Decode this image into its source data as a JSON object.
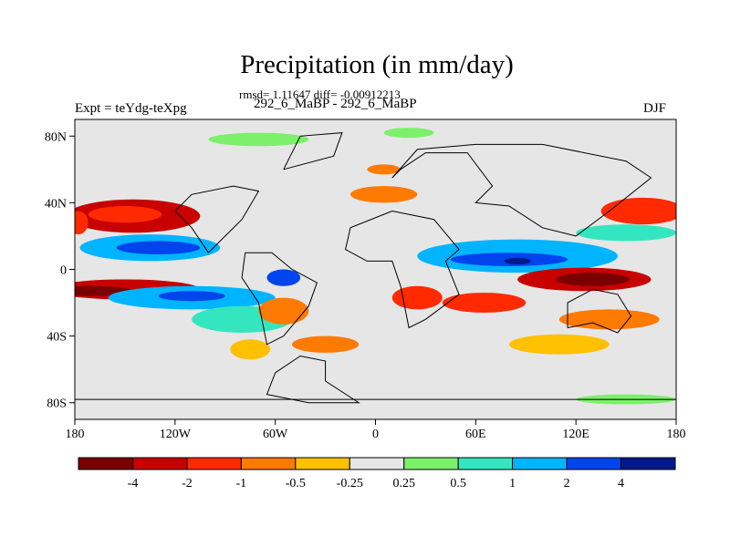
{
  "chart_data": {
    "type": "heatmap",
    "title": "Precipitation (in mm/day)",
    "stats_text": "rmsd= 1.11647 diff= -0.00912213",
    "subtitle": "292_6_MaBP - 292_6_MaBP",
    "left_label": "Expt = teYdg-teXpg",
    "right_label": "DJF",
    "x_ticks": [
      "180",
      "120W",
      "60W",
      "0",
      "60E",
      "120E",
      "180"
    ],
    "y_ticks": [
      "80N",
      "40N",
      "0",
      "40S",
      "80S"
    ],
    "xlim": [
      -180,
      180
    ],
    "ylim": [
      -90,
      90
    ],
    "colorbar": {
      "labels": [
        "-4",
        "-2",
        "-1",
        "-0.5",
        "-0.25",
        "0.25",
        "0.5",
        "1",
        "2",
        "4"
      ],
      "colors": [
        "#7a0000",
        "#c80000",
        "#ff2a00",
        "#ff7a00",
        "#ffc000",
        "#e6e6e6",
        "#7cf06a",
        "#33e6c0",
        "#00b4ff",
        "#0044ee",
        "#001a8a"
      ]
    },
    "background_color": "#e6e6e6",
    "anomaly_regions": [
      {
        "name": "north-pacific-dry",
        "lon": -145,
        "lat": 32,
        "rx": 40,
        "ry": 10,
        "level": 1
      },
      {
        "name": "north-pacific-dry-core",
        "lon": -150,
        "lat": 33,
        "rx": 22,
        "ry": 5,
        "level": 2
      },
      {
        "name": "north-pacific-dry-west",
        "lon": -178,
        "lat": 28,
        "rx": 6,
        "ry": 7,
        "level": 2
      },
      {
        "name": "subtropical-pacific-wet",
        "lon": -135,
        "lat": 13,
        "rx": 42,
        "ry": 8,
        "level": 8
      },
      {
        "name": "subtropical-pacific-wet-core",
        "lon": -130,
        "lat": 13,
        "rx": 25,
        "ry": 4,
        "level": 9
      },
      {
        "name": "tropical-pacific-dry",
        "lon": -150,
        "lat": -12,
        "rx": 45,
        "ry": 6,
        "level": 1
      },
      {
        "name": "tropical-pacific-dry-core",
        "lon": -170,
        "lat": -13,
        "rx": 25,
        "ry": 3,
        "level": 0
      },
      {
        "name": "south-pacific-wet",
        "lon": -110,
        "lat": -17,
        "rx": 50,
        "ry": 7,
        "level": 8
      },
      {
        "name": "south-pacific-wet-core",
        "lon": -110,
        "lat": -16,
        "rx": 20,
        "ry": 3,
        "level": 9
      },
      {
        "name": "south-pacific-moist-band",
        "lon": -80,
        "lat": -30,
        "rx": 30,
        "ry": 8,
        "level": 7
      },
      {
        "name": "amazon-wet",
        "lon": -55,
        "lat": -5,
        "rx": 10,
        "ry": 5,
        "level": 9
      },
      {
        "name": "south-atlantic-dry",
        "lon": -55,
        "lat": -25,
        "rx": 15,
        "ry": 8,
        "level": 3
      },
      {
        "name": "southern-ocean-dry",
        "lon": -30,
        "lat": -45,
        "rx": 20,
        "ry": 5,
        "level": 3
      },
      {
        "name": "southern-ocean-dry-2",
        "lon": -75,
        "lat": -48,
        "rx": 12,
        "ry": 6,
        "level": 4
      },
      {
        "name": "africa-dry",
        "lon": 25,
        "lat": -17,
        "rx": 15,
        "ry": 7,
        "level": 2
      },
      {
        "name": "eurasia-dry-band",
        "lon": 5,
        "lat": 45,
        "rx": 20,
        "ry": 5,
        "level": 3
      },
      {
        "name": "northeast-asia-dry",
        "lon": 5,
        "lat": 60,
        "rx": 10,
        "ry": 3,
        "level": 3
      },
      {
        "name": "indian-ocean-wet",
        "lon": 85,
        "lat": 8,
        "rx": 60,
        "ry": 10,
        "level": 8
      },
      {
        "name": "indian-ocean-wet-core",
        "lon": 80,
        "lat": 6,
        "rx": 35,
        "ry": 4,
        "level": 9
      },
      {
        "name": "indian-ocean-wet-deep",
        "lon": 85,
        "lat": 5,
        "rx": 8,
        "ry": 2,
        "level": 10
      },
      {
        "name": "maritime-dry",
        "lon": 125,
        "lat": -6,
        "rx": 40,
        "ry": 7,
        "level": 1
      },
      {
        "name": "maritime-dry-core",
        "lon": 130,
        "lat": -6,
        "rx": 22,
        "ry": 4,
        "level": 0
      },
      {
        "name": "south-indian-dry",
        "lon": 65,
        "lat": -20,
        "rx": 25,
        "ry": 6,
        "level": 2
      },
      {
        "name": "west-pacific-dry",
        "lon": 160,
        "lat": 35,
        "rx": 25,
        "ry": 8,
        "level": 2
      },
      {
        "name": "west-pacific-wet",
        "lon": 150,
        "lat": 22,
        "rx": 30,
        "ry": 5,
        "level": 7
      },
      {
        "name": "australia-dry",
        "lon": 140,
        "lat": -30,
        "rx": 30,
        "ry": 6,
        "level": 3
      },
      {
        "name": "south-indian-ocean-dry",
        "lon": 110,
        "lat": -45,
        "rx": 30,
        "ry": 6,
        "level": 4
      },
      {
        "name": "arctic-wet",
        "lon": -70,
        "lat": 78,
        "rx": 30,
        "ry": 4,
        "level": 6
      },
      {
        "name": "arctic-wet-2",
        "lon": 20,
        "lat": 82,
        "rx": 15,
        "ry": 3,
        "level": 6
      },
      {
        "name": "antarctic-wet",
        "lon": 150,
        "lat": -78,
        "rx": 30,
        "ry": 3,
        "level": 6
      }
    ]
  }
}
